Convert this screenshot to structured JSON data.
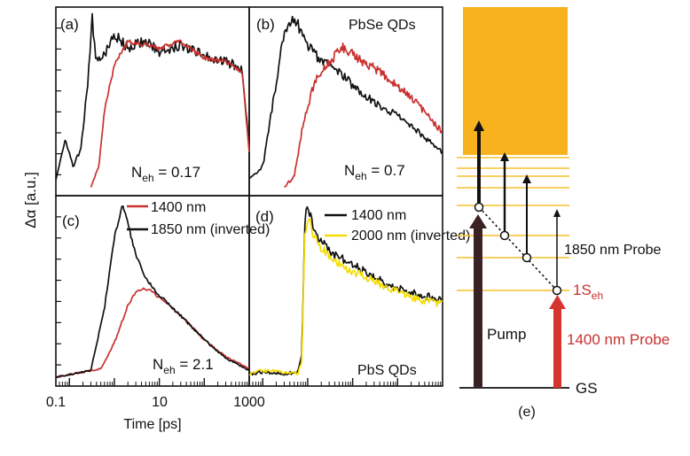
{
  "colors": {
    "black_trace": "#111111",
    "red_trace": "#c8312f",
    "yellow_trace": "#f5dc00",
    "continuum": "#f7b21e",
    "level_line": "#f6c02b"
  },
  "axes": {
    "ylabel": "Δα [a.u.]",
    "xlabel": "Time [ps]",
    "xticklabels": [
      "0.1",
      "10",
      "1000"
    ],
    "x_scale": "log",
    "xlim": [
      0.05,
      1000
    ]
  },
  "chart_data": [
    {
      "type": "line",
      "panel": "(a)",
      "annotation": "N_eh = 0.17",
      "annotation_base": "N",
      "annotation_sub": "eh",
      "annotation_value": " = 0.17",
      "title": "",
      "x_scale": "log",
      "xlim": [
        0.05,
        1000
      ],
      "series": [
        {
          "color": "#111111",
          "x": [
            0.05,
            0.08,
            0.12,
            0.18,
            0.25,
            0.32,
            0.4,
            0.6,
            1,
            2,
            5,
            10,
            30,
            100,
            300,
            700,
            1000
          ],
          "y": [
            0.05,
            0.28,
            0.12,
            0.22,
            0.58,
            1.0,
            0.74,
            0.78,
            0.9,
            0.82,
            0.86,
            0.8,
            0.84,
            0.78,
            0.74,
            0.7,
            0.22
          ]
        },
        {
          "color": "#c8312f",
          "x": [
            0.3,
            0.45,
            0.6,
            1,
            2,
            5,
            10,
            30,
            100,
            300,
            700,
            1000
          ],
          "y": [
            0.0,
            0.12,
            0.45,
            0.72,
            0.86,
            0.84,
            0.82,
            0.86,
            0.76,
            0.74,
            0.68,
            0.2
          ]
        }
      ]
    },
    {
      "type": "line",
      "panel": "(b)",
      "label": "PbSe QDs",
      "annotation": "N_eh = 0.7",
      "annotation_base": "N",
      "annotation_sub": "eh",
      "annotation_value": " = 0.7",
      "title": "",
      "x_scale": "log",
      "xlim": [
        0.05,
        1000
      ],
      "series": [
        {
          "color": "#111111",
          "x": [
            0.05,
            0.1,
            0.2,
            0.3,
            0.5,
            1,
            2,
            5,
            10,
            30,
            100,
            300,
            1000
          ],
          "y": [
            0.05,
            0.12,
            0.62,
            0.92,
            1.0,
            0.84,
            0.74,
            0.68,
            0.6,
            0.5,
            0.42,
            0.32,
            0.2
          ]
        },
        {
          "color": "#c8312f",
          "x": [
            0.3,
            0.5,
            0.8,
            1.5,
            3,
            6,
            10,
            30,
            100,
            300,
            1000
          ],
          "y": [
            0.0,
            0.06,
            0.38,
            0.64,
            0.74,
            0.82,
            0.78,
            0.7,
            0.6,
            0.48,
            0.32
          ]
        }
      ]
    },
    {
      "type": "line",
      "panel": "(c)",
      "annotation": "N_eh = 2.1",
      "annotation_base": "N",
      "annotation_sub": "eh",
      "annotation_value": " = 2.1",
      "title": "",
      "x_scale": "log",
      "xlim": [
        0.05,
        1000
      ],
      "series": [
        {
          "name": "1400 nm",
          "color": "#c8312f",
          "x": [
            0.05,
            0.5,
            1,
            2,
            3,
            5,
            10,
            30,
            100,
            300,
            1000
          ],
          "y": [
            0.0,
            0.05,
            0.2,
            0.42,
            0.5,
            0.52,
            0.47,
            0.36,
            0.22,
            0.12,
            0.05
          ]
        },
        {
          "name": "1850 nm (inverted)",
          "color": "#111111",
          "x": [
            0.05,
            0.3,
            0.6,
            1,
            1.5,
            2,
            3,
            5,
            10,
            30,
            100,
            300,
            1000
          ],
          "y": [
            0.0,
            0.04,
            0.4,
            0.82,
            1.0,
            0.9,
            0.72,
            0.58,
            0.48,
            0.36,
            0.22,
            0.11,
            0.04
          ]
        }
      ]
    },
    {
      "type": "line",
      "panel": "(d)",
      "label": "PbS QDs",
      "title": "",
      "x_scale": "log",
      "xlim": [
        0.05,
        1000
      ],
      "series": [
        {
          "name": "1400 nm",
          "color": "#111111",
          "x": [
            0.05,
            0.1,
            0.3,
            0.6,
            0.75,
            0.85,
            1,
            1.5,
            3,
            10,
            30,
            100,
            300,
            1000
          ],
          "y": [
            0.02,
            0.03,
            0.02,
            0.03,
            0.15,
            0.9,
            1.0,
            0.84,
            0.74,
            0.66,
            0.58,
            0.52,
            0.48,
            0.46
          ]
        },
        {
          "name": "2000 nm (inverted)",
          "color": "#f5dc00",
          "x": [
            0.05,
            0.1,
            0.3,
            0.6,
            0.75,
            0.85,
            1,
            1.5,
            3,
            10,
            30,
            100,
            300,
            1000
          ],
          "y": [
            0.02,
            0.04,
            0.03,
            0.02,
            0.1,
            0.82,
            0.95,
            0.8,
            0.7,
            0.62,
            0.56,
            0.5,
            0.45,
            0.43
          ]
        }
      ]
    }
  ],
  "diagram": {
    "panel": "(e)",
    "pump_label": "Pump",
    "probe_1850_label": "1850 nm Probe",
    "probe_1400_label": "1400 nm Probe",
    "level_1S_base": "1S",
    "level_1S_sub": "eh",
    "ground_label": "GS"
  }
}
